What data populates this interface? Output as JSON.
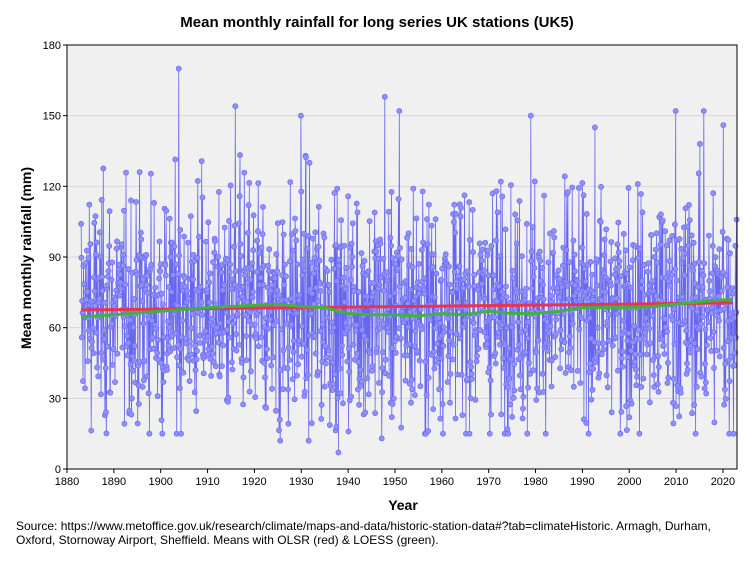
{
  "chart_data": {
    "type": "line",
    "title": "Mean monthly rainfall for long series UK stations (UK5)",
    "xlabel": "Year",
    "ylabel": "Mean monthly rainfall (mm)",
    "xlim": [
      1880,
      2023
    ],
    "ylim": [
      0,
      180
    ],
    "xticks": [
      1880,
      1890,
      1900,
      1910,
      1920,
      1930,
      1940,
      1950,
      1960,
      1970,
      1980,
      1990,
      2000,
      2010,
      2020
    ],
    "yticks": [
      0,
      30,
      60,
      90,
      120,
      150,
      180
    ],
    "grid": true,
    "legend": "none",
    "monthly_series": {
      "start_year": 1883,
      "end_year": 2022,
      "frequency": "monthly",
      "mean_mm": 68,
      "min_mm": 7,
      "max_mm": 170,
      "color": "#6666ee",
      "marker_fill": "#8f8fff",
      "notable_peaks": [
        {
          "year": 1903.8,
          "value": 170
        },
        {
          "year": 1915.9,
          "value": 154
        },
        {
          "year": 1929.9,
          "value": 150
        },
        {
          "year": 1947.8,
          "value": 158
        },
        {
          "year": 1950.9,
          "value": 152
        },
        {
          "year": 1979.0,
          "value": 150
        },
        {
          "year": 2009.9,
          "value": 152
        },
        {
          "year": 2015.9,
          "value": 152
        },
        {
          "year": 2020.1,
          "value": 146
        }
      ],
      "notable_lows": [
        {
          "year": 1937.9,
          "value": 7
        },
        {
          "year": 1947.2,
          "value": 13
        },
        {
          "year": 1925.5,
          "value": 12
        },
        {
          "year": 1931.6,
          "value": 12
        }
      ]
    },
    "series": [
      {
        "name": "OLSR",
        "color": "#e8344f",
        "x": [
          1883,
          2022
        ],
        "y": [
          67.5,
          70.5
        ]
      },
      {
        "name": "LOESS",
        "color": "#44b044",
        "x": [
          1883,
          1890,
          1900,
          1910,
          1920,
          1925,
          1930,
          1935,
          1940,
          1945,
          1950,
          1955,
          1960,
          1965,
          1970,
          1975,
          1980,
          1985,
          1990,
          1995,
          2000,
          2005,
          2010,
          2015,
          2022
        ],
        "y": [
          64.5,
          65.5,
          67.0,
          68.5,
          69.5,
          70.0,
          69.0,
          68.5,
          66.0,
          65.5,
          65.5,
          65.0,
          66.0,
          65.5,
          67.0,
          66.0,
          66.0,
          67.0,
          68.5,
          68.5,
          68.5,
          69.0,
          70.0,
          71.0,
          72.0
        ]
      }
    ]
  },
  "source_note": "Source: https://www.metoffice.gov.uk/research/climate/maps-and-data/historic-station-data#?tab=climateHistoric. Armagh, Durham, Oxford, Stornoway Airport, Sheffield. Means with OLSR (red) & LOESS (green)."
}
